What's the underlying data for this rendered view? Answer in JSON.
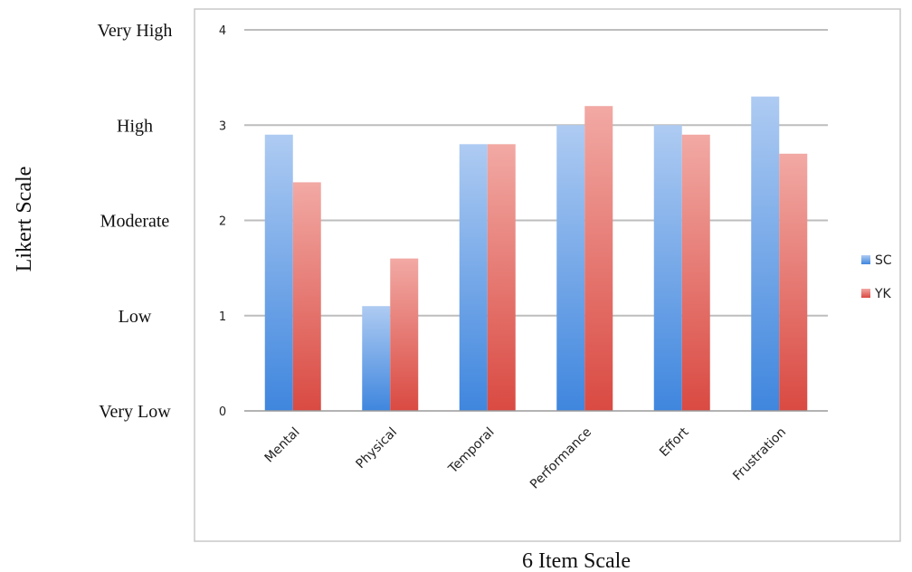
{
  "chart_data": {
    "type": "bar",
    "title": "",
    "xlabel": "6 Item Scale",
    "ylabel": "Likert Scale",
    "categories": [
      "Mental",
      "Physical",
      "Temporal",
      "Performance",
      "Effort",
      "Frustration"
    ],
    "series": [
      {
        "name": "SC",
        "color": "#4a8ee0",
        "values": [
          2.9,
          1.1,
          2.8,
          3.0,
          3.0,
          3.3
        ]
      },
      {
        "name": "YK",
        "color": "#e0574f",
        "values": [
          2.4,
          1.6,
          2.8,
          3.2,
          2.9,
          2.7
        ]
      }
    ],
    "ylim": [
      0,
      4
    ],
    "yticks": [
      "0",
      "1",
      "2",
      "3",
      "4"
    ],
    "likert_labels": [
      "Very Low",
      "Low",
      "Moderate",
      "High",
      "Very High"
    ],
    "grid": true,
    "legend_position": "right"
  }
}
